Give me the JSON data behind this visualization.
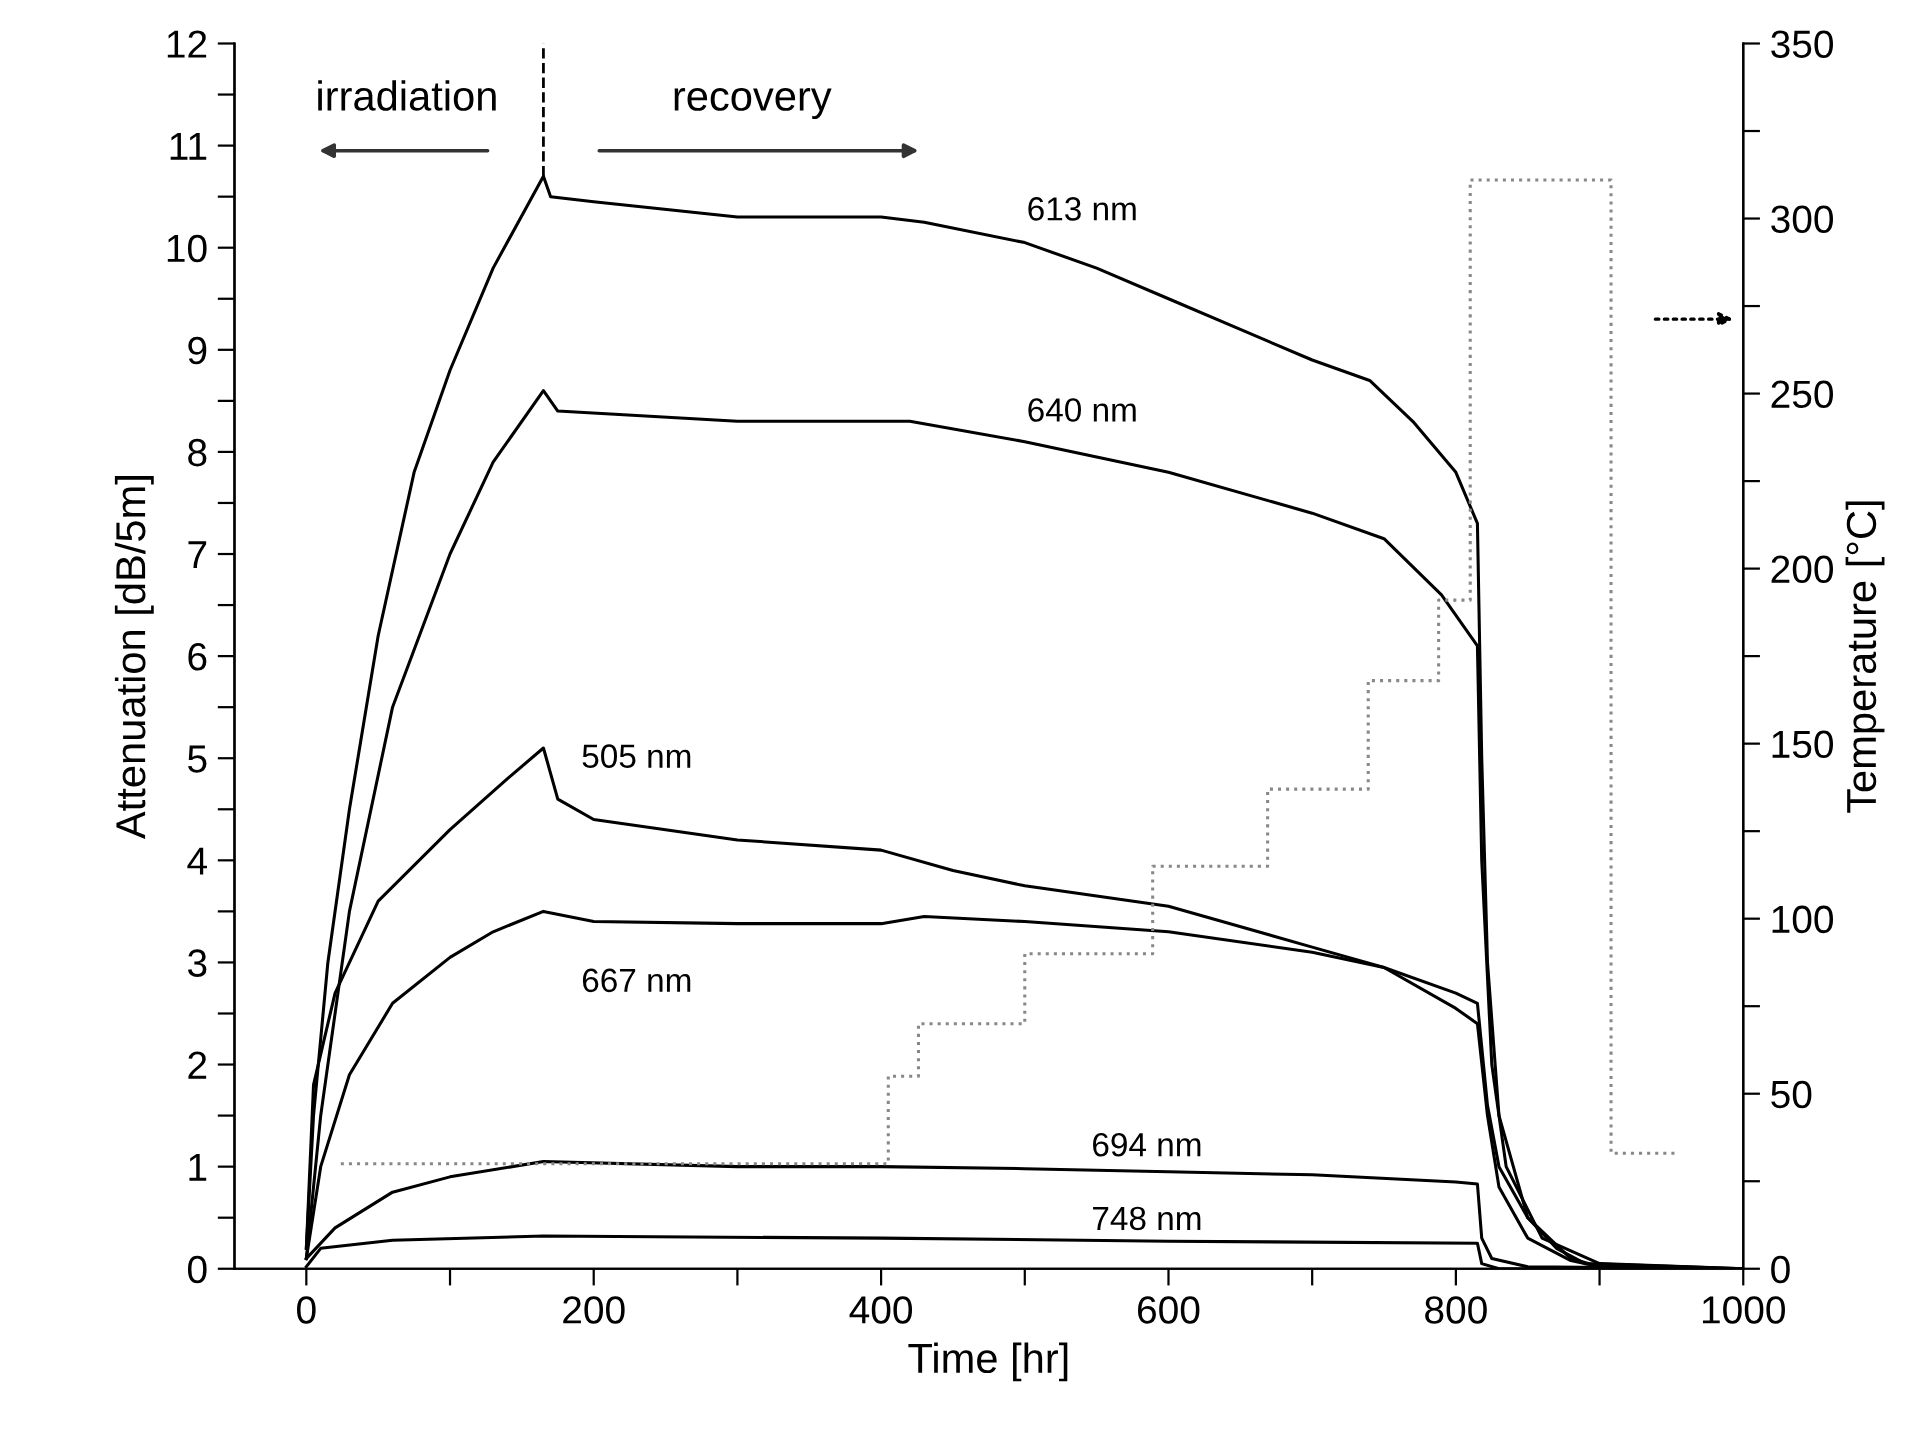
{
  "chart_data": {
    "type": "line",
    "xlabel": "Time [hr]",
    "ylabel": "Attenuation [dB/5m]",
    "y2label": "Temperature [°C]",
    "xlim": [
      -50,
      1000
    ],
    "xticks": [
      0,
      {
        "value": 100,
        "label": null
      },
      200,
      {
        "value": 300,
        "label": null
      },
      400,
      {
        "value": 500,
        "label": null
      },
      600,
      {
        "value": 700,
        "label": null
      },
      800,
      {
        "value": 900,
        "label": null
      },
      1000
    ],
    "ylim": [
      0,
      12
    ],
    "yticks": [
      0,
      {
        "value": 0.5,
        "label": null
      },
      1,
      {
        "value": 1.5,
        "label": null
      },
      2,
      {
        "value": 2.5,
        "label": null
      },
      3,
      {
        "value": 3.5,
        "label": null
      },
      4,
      {
        "value": 4.5,
        "label": null
      },
      5,
      {
        "value": 5.5,
        "label": null
      },
      6,
      {
        "value": 6.5,
        "label": null
      },
      7,
      {
        "value": 7.5,
        "label": null
      },
      8,
      {
        "value": 8.5,
        "label": null
      },
      9,
      {
        "value": 9.5,
        "label": null
      },
      10,
      {
        "value": 10.5,
        "label": null
      },
      11,
      {
        "value": 11.5,
        "label": null
      },
      12
    ],
    "y2lim": [
      0,
      350
    ],
    "y2ticks": [
      0,
      {
        "value": 25,
        "label": null
      },
      50,
      {
        "value": 75,
        "label": null
      },
      100,
      {
        "value": 125,
        "label": null
      },
      150,
      {
        "value": 175,
        "label": null
      },
      200,
      {
        "value": 225,
        "label": null
      },
      250,
      {
        "value": 275,
        "label": null
      },
      300,
      {
        "value": 325,
        "label": null
      },
      350
    ],
    "grid": false,
    "legend": false,
    "line_style": "solid",
    "marker": "none",
    "annotations": [
      "irradiation",
      "recovery"
    ],
    "ref_lines": [
      {
        "axis": "x",
        "value": 165,
        "color": "#000000",
        "line_style": "dashed"
      }
    ],
    "series": [
      {
        "name": "613 nm",
        "color": "#000000",
        "x": [
          0,
          5,
          15,
          30,
          50,
          75,
          100,
          130,
          165,
          170,
          200,
          300,
          400,
          430,
          500,
          550,
          600,
          650,
          700,
          740,
          770,
          800,
          815,
          818,
          822,
          830,
          850,
          880,
          900,
          1000
        ],
        "values": [
          0.2,
          1.5,
          3,
          4.5,
          6.2,
          7.8,
          8.8,
          9.8,
          10.7,
          10.5,
          10.45,
          10.3,
          10.3,
          10.25,
          10.05,
          9.8,
          9.5,
          9.2,
          8.9,
          8.7,
          8.3,
          7.8,
          7.3,
          5,
          3,
          1.5,
          0.5,
          0.1,
          0.02,
          0
        ]
      },
      {
        "name": "640 nm",
        "color": "#000000",
        "x": [
          0,
          10,
          30,
          60,
          100,
          130,
          165,
          175,
          300,
          420,
          500,
          600,
          700,
          750,
          790,
          815,
          818,
          825,
          835,
          860,
          900,
          1000
        ],
        "values": [
          0.1,
          1.5,
          3.5,
          5.5,
          7,
          7.9,
          8.6,
          8.4,
          8.3,
          8.3,
          8.1,
          7.8,
          7.4,
          7.15,
          6.6,
          6.1,
          4,
          2,
          1,
          0.3,
          0.05,
          0
        ]
      },
      {
        "name": "505 nm",
        "color": "#000000",
        "x": [
          0,
          5,
          20,
          50,
          100,
          140,
          165,
          175,
          200,
          300,
          400,
          450,
          500,
          550,
          600,
          700,
          750,
          800,
          815,
          822,
          830,
          850,
          880,
          900,
          1000
        ],
        "values": [
          0.2,
          1.8,
          2.7,
          3.6,
          4.3,
          4.8,
          5.1,
          4.6,
          4.4,
          4.2,
          4.1,
          3.9,
          3.75,
          3.65,
          3.55,
          3.15,
          2.95,
          2.55,
          2.4,
          1.5,
          0.8,
          0.3,
          0.08,
          0.02,
          0
        ]
      },
      {
        "name": "667 nm",
        "color": "#000000",
        "x": [
          0,
          10,
          30,
          60,
          100,
          130,
          165,
          200,
          300,
          400,
          430,
          500,
          600,
          700,
          750,
          800,
          815,
          822,
          830,
          850,
          870,
          890,
          1000
        ],
        "values": [
          0.1,
          1,
          1.9,
          2.6,
          3.05,
          3.3,
          3.5,
          3.4,
          3.38,
          3.38,
          3.45,
          3.4,
          3.3,
          3.1,
          2.95,
          2.7,
          2.6,
          1.6,
          1,
          0.5,
          0.2,
          0.05,
          0
        ]
      },
      {
        "name": "694 nm",
        "color": "#000000",
        "x": [
          0,
          20,
          60,
          100,
          165,
          300,
          400,
          500,
          600,
          700,
          800,
          815,
          818,
          825,
          850,
          1000
        ],
        "values": [
          0.1,
          0.4,
          0.75,
          0.9,
          1.05,
          1,
          1,
          0.98,
          0.95,
          0.92,
          0.85,
          0.83,
          0.3,
          0.1,
          0.02,
          0
        ]
      },
      {
        "name": "748 nm",
        "color": "#000000",
        "x": [
          0,
          10,
          60,
          165,
          400,
          600,
          815,
          818,
          830,
          1000
        ],
        "values": [
          0.02,
          0.2,
          0.28,
          0.32,
          0.3,
          0.27,
          0.25,
          0.05,
          0,
          0
        ]
      },
      {
        "type": "step",
        "axis": "y2",
        "color": "#888888",
        "line_style": "dotted",
        "x": [
          24,
          405,
          426,
          500,
          589,
          669,
          739,
          788,
          810,
          908,
          954
        ],
        "values": [
          30,
          55,
          70,
          90,
          115,
          137,
          168,
          191,
          311,
          33,
          33
        ]
      }
    ]
  }
}
